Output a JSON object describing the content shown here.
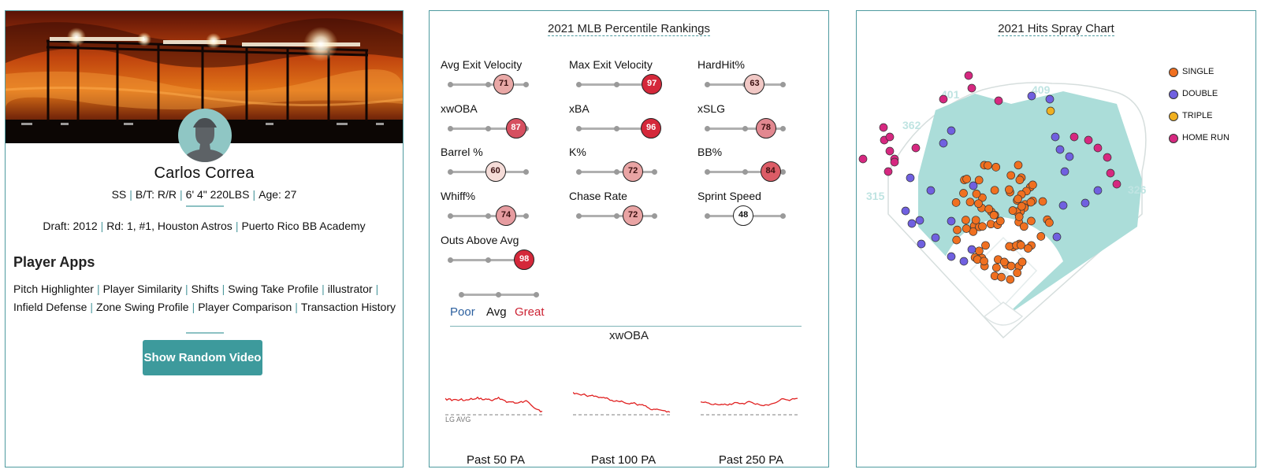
{
  "player": {
    "name": "Carlos Correa",
    "position": "SS",
    "bats_throws": "B/T: R/R",
    "height_weight": "6' 4\" 220LBS",
    "age": "Age: 27",
    "draft_label": "Draft:",
    "draft_year": "2012",
    "draft_round": "Rd: 1, #1, Houston Astros",
    "school": "Puerto Rico BB Academy"
  },
  "apps": {
    "title": "Player Apps",
    "links": [
      "Pitch Highlighter",
      "Player Similarity",
      "Shifts",
      "Swing Take Profile",
      "illustrator",
      "Infield Defense",
      "Zone Swing Profile",
      "Player Comparison",
      "Transaction History"
    ],
    "random_video_label": "Show Random Video"
  },
  "rankings": {
    "title": "2021 MLB Percentile Rankings",
    "metrics": [
      {
        "label": "Avg Exit Velocity",
        "value": 71,
        "color": "#e9a8a6",
        "text_color": "#3a1010"
      },
      {
        "label": "Max Exit Velocity",
        "value": 97,
        "color": "#d4283a",
        "text_color": "#ffffff"
      },
      {
        "label": "HardHit%",
        "value": 63,
        "color": "#f1c8c5",
        "text_color": "#3a1010"
      },
      {
        "label": "xwOBA",
        "value": 87,
        "color": "#d65060",
        "text_color": "#ffffff"
      },
      {
        "label": "xBA",
        "value": 96,
        "color": "#d4283a",
        "text_color": "#ffffff"
      },
      {
        "label": "xSLG",
        "value": 78,
        "color": "#e28890",
        "text_color": "#3a1010"
      },
      {
        "label": "Barrel %",
        "value": 60,
        "color": "#f5dcd8",
        "text_color": "#3a1010"
      },
      {
        "label": "K%",
        "value": 72,
        "color": "#e9a4a4",
        "text_color": "#3a1010"
      },
      {
        "label": "BB%",
        "value": 84,
        "color": "#dc5c66",
        "text_color": "#3a1010"
      },
      {
        "label": "Whiff%",
        "value": 74,
        "color": "#e69ca0",
        "text_color": "#3a1010"
      },
      {
        "label": "Chase Rate",
        "value": 72,
        "color": "#e9a4a4",
        "text_color": "#3a1010"
      },
      {
        "label": "Sprint Speed",
        "value": 48,
        "color": "#ffffff",
        "text_color": "#111111"
      },
      {
        "label": "Outs Above Avg",
        "value": 98,
        "color": "#d4283a",
        "text_color": "#ffffff"
      }
    ],
    "scale": {
      "poor": "Poor",
      "avg": "Avg",
      "great": "Great",
      "poor_color": "#2b5f9e",
      "great_color": "#cc2233"
    },
    "xwoba_title": "xwOBA",
    "lg_avg_label": "LG AVG",
    "windows": [
      "Past 50 PA",
      "Past 100 PA",
      "Past 250 PA"
    ],
    "trend_color": "#e02020"
  },
  "spray": {
    "title": "2021 Hits Spray Chart",
    "distances": [
      "315",
      "362",
      "401",
      "409",
      "326"
    ],
    "legend": [
      {
        "label": "SINGLE",
        "color": "#f07020"
      },
      {
        "label": "DOUBLE",
        "color": "#7060e0"
      },
      {
        "label": "TRIPLE",
        "color": "#f0b020"
      },
      {
        "label": "HOME RUN",
        "color": "#d62880"
      }
    ]
  }
}
